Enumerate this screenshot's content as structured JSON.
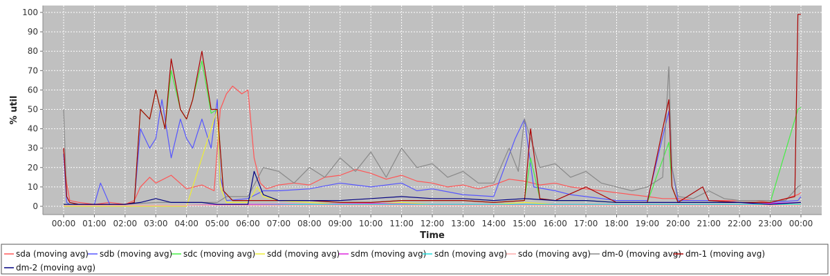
{
  "chart_data": {
    "type": "line",
    "xlabel": "Time",
    "ylabel": "% util",
    "ylim": [
      0,
      100
    ],
    "yticks": [
      0,
      10,
      20,
      30,
      40,
      50,
      60,
      70,
      80,
      90,
      100
    ],
    "xlim": [
      0,
      24
    ],
    "xticks": [
      "00:00",
      "01:00",
      "02:00",
      "03:00",
      "04:00",
      "05:00",
      "06:00",
      "07:00",
      "08:00",
      "09:00",
      "10:00",
      "11:00",
      "12:00",
      "13:00",
      "14:00",
      "15:00",
      "16:00",
      "17:00",
      "18:00",
      "19:00",
      "20:00",
      "21:00",
      "22:00",
      "23:00",
      "00:00"
    ],
    "grid": true,
    "legend_position": "bottom",
    "series": [
      {
        "name": "sda (moving avg)",
        "color": "#ff5555",
        "x": [
          0,
          0.1,
          0.2,
          0.5,
          1,
          1.5,
          2,
          2.3,
          2.5,
          2.8,
          3,
          3.5,
          4,
          4.5,
          4.9,
          5.1,
          5.3,
          5.5,
          5.8,
          6,
          6.2,
          6.4,
          6.6,
          7,
          7.5,
          8,
          8.5,
          9,
          9.5,
          10,
          10.5,
          11,
          11.5,
          12,
          12.5,
          13,
          13.5,
          14,
          14.5,
          15,
          15.5,
          16,
          16.5,
          17,
          17.5,
          18,
          18.5,
          19,
          19.5,
          20,
          20.5,
          21,
          21.5,
          22,
          22.5,
          23,
          23.5,
          23.9,
          24
        ],
        "y": [
          30,
          12,
          3,
          2,
          1,
          2,
          1,
          3,
          10,
          15,
          12,
          16,
          9,
          11,
          8,
          50,
          58,
          62,
          58,
          60,
          25,
          12,
          9,
          11,
          12,
          11,
          15,
          16,
          19,
          17,
          14,
          16,
          13,
          12,
          10,
          11,
          9,
          11,
          14,
          13,
          11,
          12,
          10,
          9,
          8,
          7,
          6,
          5,
          4,
          4,
          3,
          3,
          3,
          3,
          3,
          2,
          4,
          6,
          7
        ]
      },
      {
        "name": "sdb (moving avg)",
        "color": "#5555ff",
        "x": [
          0,
          0.1,
          0.2,
          0.5,
          1,
          1.2,
          1.5,
          2,
          2.3,
          2.5,
          2.8,
          3,
          3.2,
          3.5,
          3.8,
          4,
          4.2,
          4.5,
          4.8,
          5,
          5.1,
          5.3,
          6,
          6.5,
          7,
          8,
          9,
          10,
          11,
          11.5,
          12,
          13,
          14,
          14.7,
          15,
          15.3,
          16,
          16.5,
          17,
          18,
          19,
          19.7,
          19.8,
          20,
          21,
          22,
          23,
          23.9,
          24
        ],
        "y": [
          27,
          2,
          1,
          1,
          1,
          12,
          1,
          1,
          2,
          40,
          30,
          35,
          55,
          25,
          45,
          35,
          30,
          45,
          30,
          55,
          15,
          3,
          4,
          8,
          8,
          9,
          12,
          10,
          12,
          8,
          9,
          6,
          5,
          35,
          45,
          10,
          8,
          6,
          5,
          3,
          3,
          49,
          20,
          3,
          3,
          2,
          2,
          3,
          5
        ]
      },
      {
        "name": "sdc (moving avg)",
        "color": "#44ee44",
        "x": [
          0,
          0.5,
          1,
          2,
          2.3,
          2.5,
          2.8,
          3,
          3.3,
          3.5,
          3.8,
          4,
          4.2,
          4.5,
          4.8,
          5,
          5.2,
          5.5,
          6,
          7,
          8,
          9,
          10,
          11,
          12,
          13,
          14,
          15,
          15.2,
          15.5,
          16,
          17,
          18,
          19,
          19.7,
          19.8,
          20,
          21,
          22,
          23,
          23.9,
          24
        ],
        "y": [
          1,
          1,
          1,
          1,
          2,
          50,
          45,
          60,
          40,
          70,
          50,
          45,
          55,
          75,
          48,
          50,
          8,
          3,
          3,
          3,
          3,
          2,
          2,
          3,
          3,
          3,
          2,
          3,
          25,
          4,
          3,
          3,
          2,
          2,
          33,
          10,
          2,
          2,
          2,
          2,
          50,
          51
        ]
      },
      {
        "name": "sdd (moving avg)",
        "color": "#eeee33",
        "x": [
          0,
          1,
          2,
          3,
          4,
          5,
          5.1,
          5.3,
          6,
          6.3,
          6.5,
          7,
          8,
          9,
          10,
          11,
          12,
          13,
          14,
          15,
          16,
          17,
          18,
          19,
          20,
          21,
          22,
          23,
          24
        ],
        "y": [
          0,
          0,
          0,
          0,
          0,
          50,
          10,
          2,
          2,
          10,
          5,
          3,
          2,
          1,
          1,
          2,
          1,
          1,
          1,
          2,
          1,
          1,
          1,
          1,
          1,
          1,
          1,
          1,
          1
        ]
      },
      {
        "name": "sdm (moving avg)",
        "color": "#dd22dd",
        "x": [
          0,
          2,
          4,
          6,
          8,
          10,
          12,
          14,
          16,
          18,
          20,
          22,
          24
        ],
        "y": [
          0.5,
          0.5,
          0.5,
          1,
          1,
          1.5,
          1,
          1,
          1,
          1,
          1,
          1,
          2
        ]
      },
      {
        "name": "sdn (moving avg)",
        "color": "#22dddd",
        "x": [
          0,
          2,
          4,
          6,
          8,
          10,
          12,
          14,
          16,
          18,
          20,
          22,
          24
        ],
        "y": [
          0.5,
          0.5,
          0.5,
          0.5,
          1,
          1,
          1,
          1,
          1,
          1,
          1,
          1,
          1
        ]
      },
      {
        "name": "sdo (moving avg)",
        "color": "#ffaaaa",
        "x": [
          0,
          2,
          4,
          6,
          8,
          10,
          12,
          14,
          16,
          18,
          20,
          22,
          24
        ],
        "y": [
          0.5,
          0.5,
          0.5,
          0.5,
          0.5,
          0.5,
          0.5,
          0.5,
          0.5,
          0.5,
          0.5,
          0.5,
          0.5
        ]
      },
      {
        "name": "dm-0 (moving avg)",
        "color": "#888888",
        "x": [
          0,
          0.1,
          0.2,
          0.5,
          1,
          2,
          3,
          4,
          5,
          5.3,
          6,
          6.5,
          7,
          7.5,
          8,
          8.5,
          9,
          9.5,
          10,
          10.5,
          11,
          11.5,
          12,
          12.5,
          13,
          13.5,
          14,
          14.5,
          14.8,
          15,
          15.5,
          16,
          16.5,
          17,
          17.5,
          18,
          18.5,
          19,
          19.5,
          19.7,
          19.8,
          20,
          20.5,
          21,
          21.5,
          22,
          22.5,
          23,
          23.5,
          23.9,
          24
        ],
        "y": [
          50,
          5,
          2,
          1,
          1,
          1,
          2,
          2,
          2,
          5,
          5,
          20,
          18,
          12,
          20,
          15,
          25,
          18,
          28,
          15,
          30,
          20,
          22,
          15,
          18,
          12,
          12,
          30,
          18,
          45,
          20,
          22,
          15,
          18,
          12,
          10,
          8,
          10,
          15,
          72,
          20,
          5,
          4,
          8,
          4,
          3,
          3,
          3,
          3,
          10,
          11
        ]
      },
      {
        "name": "dm-1 (moving avg)",
        "color": "#aa0000",
        "x": [
          0,
          0.1,
          0.2,
          0.5,
          1,
          2,
          2.3,
          2.5,
          2.8,
          3,
          3.3,
          3.5,
          3.8,
          4,
          4.2,
          4.5,
          4.8,
          5,
          5.2,
          5.5,
          6,
          7,
          8,
          9,
          10,
          11,
          12,
          13,
          14,
          15,
          15.2,
          15.5,
          16,
          17,
          18,
          19,
          19.7,
          19.8,
          20,
          20.8,
          21,
          22,
          23,
          23.8,
          23.9,
          24
        ],
        "y": [
          30,
          5,
          2,
          1,
          1,
          1,
          2,
          50,
          45,
          60,
          40,
          76,
          50,
          45,
          55,
          80,
          50,
          50,
          8,
          3,
          3,
          3,
          3,
          2,
          2,
          3,
          3,
          3,
          2,
          3,
          40,
          4,
          3,
          10,
          2,
          2,
          55,
          10,
          2,
          10,
          3,
          2,
          2,
          5,
          99,
          99
        ]
      },
      {
        "name": "dm-2 (moving avg)",
        "color": "#000080",
        "x": [
          0,
          1,
          2,
          2.5,
          3,
          3.5,
          4,
          4.5,
          5,
          5.3,
          6,
          6.2,
          6.5,
          7,
          8,
          9,
          10,
          11,
          12,
          13,
          14,
          15,
          16,
          17,
          18,
          19,
          20,
          21,
          22,
          23,
          24
        ],
        "y": [
          1,
          1,
          1,
          2,
          4,
          2,
          2,
          2,
          1,
          1,
          1,
          18,
          6,
          3,
          3,
          3,
          4,
          5,
          4,
          4,
          3,
          4,
          3,
          3,
          2,
          2,
          2,
          2,
          2,
          1,
          2
        ]
      }
    ]
  }
}
